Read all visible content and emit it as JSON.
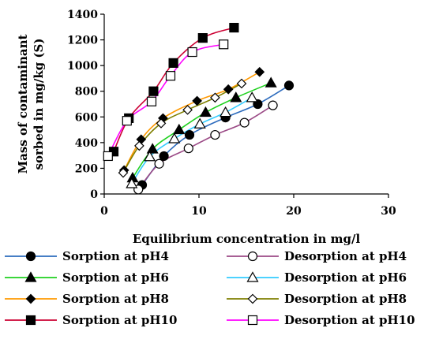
{
  "chart_data": {
    "type": "line",
    "title": "",
    "xlabel": "Equilibrium concentration in mg/l",
    "ylabel_lines": [
      "Mass of contaminant",
      "sorbed in mg/kg (S)"
    ],
    "xlim": [
      0,
      30
    ],
    "ylim": [
      0,
      1400
    ],
    "xticks": [
      0,
      10,
      20,
      30
    ],
    "yticks": [
      0,
      200,
      400,
      600,
      800,
      1000,
      1200,
      1400
    ],
    "grid": false,
    "legend_placement": "bottom",
    "series": [
      {
        "name": "Sorption at pH4",
        "color": "#2c6bbd",
        "marker": "circle",
        "fill": "filled",
        "x": [
          4.0,
          6.3,
          9.0,
          12.8,
          16.2,
          19.5
        ],
        "y": [
          70,
          295,
          460,
          595,
          700,
          845
        ]
      },
      {
        "name": "Desorption at pH4",
        "color": "#9b4a86",
        "marker": "circle",
        "fill": "open",
        "x": [
          3.6,
          5.8,
          8.9,
          11.7,
          14.8,
          17.8
        ],
        "y": [
          35,
          235,
          355,
          460,
          555,
          690
        ]
      },
      {
        "name": "Sorption at pH6",
        "color": "#1fd11f",
        "marker": "triangle",
        "fill": "filled",
        "x": [
          3.0,
          5.1,
          7.9,
          10.7,
          13.9,
          17.6
        ],
        "y": [
          125,
          350,
          500,
          635,
          750,
          865
        ]
      },
      {
        "name": "Desorption at pH6",
        "color": "#33ccff",
        "marker": "triangle",
        "fill": "open",
        "x": [
          2.9,
          4.8,
          7.4,
          10.1,
          12.8,
          15.6
        ],
        "y": [
          80,
          290,
          430,
          545,
          635,
          750
        ]
      },
      {
        "name": "Sorption at pH8",
        "color": "#ff9900",
        "marker": "diamond",
        "fill": "filled",
        "x": [
          2.1,
          3.9,
          6.2,
          9.8,
          13.1,
          16.4
        ],
        "y": [
          185,
          425,
          590,
          725,
          815,
          950
        ]
      },
      {
        "name": "Desorption at pH8",
        "color": "#7f7f00",
        "marker": "diamond",
        "fill": "open",
        "x": [
          2.0,
          3.7,
          6.0,
          8.8,
          11.7,
          14.5
        ],
        "y": [
          165,
          375,
          550,
          655,
          750,
          860
        ]
      },
      {
        "name": "Sorption at pH10",
        "color": "#cc0033",
        "marker": "square",
        "fill": "filled",
        "x": [
          1.0,
          2.6,
          5.2,
          7.3,
          10.4,
          13.7
        ],
        "y": [
          330,
          590,
          800,
          1020,
          1215,
          1295
        ]
      },
      {
        "name": "Desorption at pH10",
        "color": "#ff00ff",
        "marker": "square",
        "fill": "open",
        "x": [
          0.4,
          2.4,
          5.0,
          7.0,
          9.3,
          12.6
        ],
        "y": [
          295,
          570,
          720,
          920,
          1105,
          1165
        ]
      }
    ]
  }
}
